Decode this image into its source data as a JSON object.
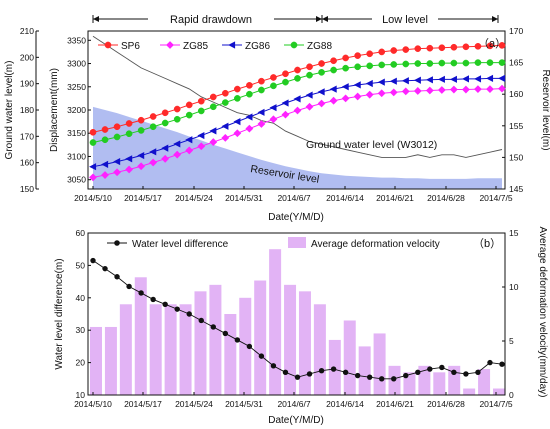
{
  "chart_data": [
    {
      "type": "line",
      "panel_label": "（a）",
      "phases": [
        "Rapid drawdown",
        "Low level"
      ],
      "xlabel": "Date(Y/M/D)",
      "x_ticks": [
        "2014/5/10",
        "2014/5/17",
        "2014/5/24",
        "2014/5/31",
        "2014/6/7",
        "2014/6/14",
        "2014/6/21",
        "2014/6/28",
        "2014/7/5"
      ],
      "y_left_outer": {
        "label": "Ground water level(m)",
        "ticks": [
          "150",
          "160",
          "170",
          "180",
          "190",
          "200",
          "210"
        ],
        "range": [
          150,
          210
        ]
      },
      "y_left_inner": {
        "label": "Displacement(mm)",
        "ticks": [
          "3050",
          "3100",
          "3150",
          "3200",
          "3250",
          "3300",
          "3350"
        ],
        "range": [
          3030,
          3370
        ]
      },
      "y_right": {
        "label": "Reservoir level(m)",
        "ticks": [
          "145",
          "150",
          "155",
          "160",
          "165",
          "170"
        ],
        "range": [
          145,
          170
        ]
      },
      "annotations": {
        "groundwater": "Ground water level (W3012)",
        "reservoir": "Reservoir level"
      },
      "series": [
        {
          "name": "SP6",
          "color": "#ff2a2a",
          "marker": "circle",
          "values": [
            3152,
            3158,
            3164,
            3171,
            3178,
            3186,
            3194,
            3202,
            3211,
            3219,
            3228,
            3236,
            3245,
            3253,
            3262,
            3270,
            3278,
            3286,
            3293,
            3300,
            3306,
            3312,
            3317,
            3321,
            3325,
            3328,
            3330,
            3332,
            3333,
            3334,
            3335,
            3336,
            3337,
            3338,
            3339
          ]
        },
        {
          "name": "ZG85",
          "color": "#ff22ff",
          "marker": "diamond",
          "values": [
            3055,
            3060,
            3066,
            3072,
            3079,
            3087,
            3095,
            3104,
            3113,
            3122,
            3131,
            3140,
            3150,
            3160,
            3170,
            3180,
            3190,
            3199,
            3207,
            3214,
            3220,
            3225,
            3229,
            3233,
            3236,
            3238,
            3240,
            3241,
            3242,
            3243,
            3244,
            3244,
            3245,
            3245,
            3246
          ]
        },
        {
          "name": "ZG86",
          "color": "#1010cc",
          "marker": "triangle-left",
          "values": [
            3078,
            3083,
            3089,
            3095,
            3102,
            3110,
            3118,
            3127,
            3136,
            3145,
            3155,
            3165,
            3175,
            3185,
            3195,
            3205,
            3215,
            3224,
            3232,
            3239,
            3245,
            3250,
            3254,
            3257,
            3260,
            3262,
            3263,
            3264,
            3265,
            3266,
            3266,
            3267,
            3267,
            3268,
            3268
          ]
        },
        {
          "name": "ZG88",
          "color": "#22cc22",
          "marker": "circle",
          "values": [
            3130,
            3136,
            3142,
            3149,
            3156,
            3164,
            3172,
            3180,
            3189,
            3198,
            3207,
            3216,
            3225,
            3234,
            3243,
            3252,
            3260,
            3268,
            3275,
            3281,
            3286,
            3290,
            3293,
            3295,
            3297,
            3298,
            3299,
            3300,
            3300,
            3301,
            3301,
            3301,
            3302,
            3302,
            3302
          ]
        }
      ],
      "groundwater_level": [
        208,
        205,
        202,
        199,
        196,
        194,
        192,
        190,
        188,
        185,
        183,
        181,
        179,
        178,
        176,
        175,
        172,
        170,
        168,
        167,
        166,
        165,
        164,
        163,
        162,
        162,
        162,
        163,
        162,
        163,
        163,
        162,
        163,
        164,
        165
      ],
      "reservoir_level": [
        158,
        157.5,
        157,
        156.4,
        155.8,
        155.2,
        154.6,
        154,
        153.3,
        152.7,
        152,
        151.4,
        150.8,
        150.2,
        149.6,
        149.1,
        148.6,
        148.2,
        147.8,
        147.5,
        147.3,
        147.1,
        147,
        146.9,
        146.8,
        146.8,
        146.7,
        146.7,
        146.6,
        146.6,
        146.6,
        146.6,
        146.7,
        146.7,
        146.7
      ]
    },
    {
      "type": "bar",
      "panel_label": "（b）",
      "xlabel": "Date(Y/M/D)",
      "x_ticks": [
        "2014/5/10",
        "2014/5/17",
        "2014/5/24",
        "2014/5/31",
        "2014/6/7",
        "2014/6/14",
        "2014/6/21",
        "2014/6/28",
        "2014/7/5"
      ],
      "y_left": {
        "label": "Water level difference(m)",
        "ticks": [
          "10",
          "20",
          "30",
          "40",
          "50",
          "60"
        ],
        "range": [
          10,
          60
        ]
      },
      "y_right": {
        "label": "Average deformation velocity(mm/day)",
        "ticks": [
          "0",
          "5",
          "10",
          "15"
        ],
        "range": [
          0,
          15
        ]
      },
      "series": [
        {
          "name": "Water level difference",
          "type": "line",
          "color": "#111111",
          "values": [
            51.5,
            49,
            46.5,
            43.5,
            41.5,
            39.5,
            38,
            36.5,
            35,
            33,
            31,
            29,
            27,
            25,
            22,
            19,
            17,
            15.5,
            16.5,
            17.5,
            18,
            17,
            16,
            15.5,
            15,
            15,
            16,
            17,
            18,
            18.5,
            17,
            16.5,
            17,
            20,
            19.5
          ]
        },
        {
          "name": "Average deformation velocity",
          "type": "bar",
          "color": "#e2b3f5",
          "values": [
            6.3,
            6.3,
            8.4,
            10.9,
            8.4,
            8.4,
            8.4,
            9.6,
            10.2,
            7.5,
            9.0,
            10.6,
            13.5,
            10.2,
            9.6,
            8.4,
            5.1,
            6.9,
            4.5,
            5.7,
            2.7,
            2.1,
            2.7,
            2.1,
            2.7,
            0.6,
            2.4,
            0.6
          ]
        }
      ]
    }
  ]
}
